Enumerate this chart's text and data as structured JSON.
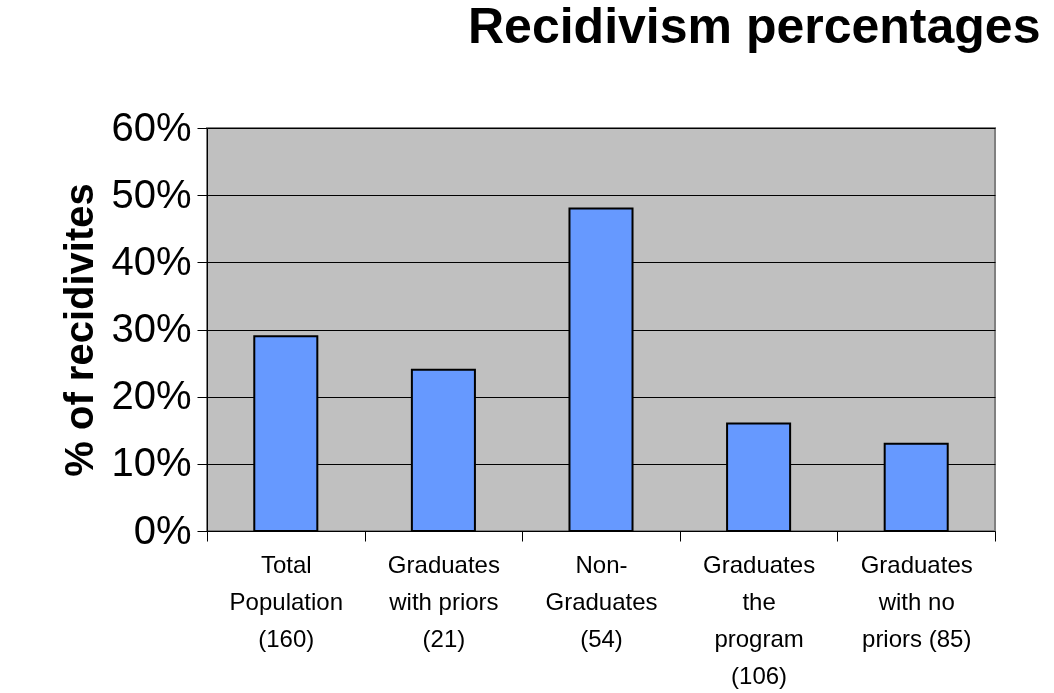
{
  "chart_data": {
    "type": "bar",
    "title": "Recidivism percentages",
    "ylabel": "% of recidivites",
    "categories": [
      "Total\nPopulation\n(160)",
      "Graduates\nwith priors\n(21)",
      "Non-\nGraduates\n(54)",
      "Graduates\nthe\nprogram\n(106)",
      "Graduates\nwith no\npriors (85)"
    ],
    "values": [
      29,
      24,
      48,
      16,
      13
    ],
    "color": "#6699ff",
    "ylim": [
      0,
      60
    ],
    "yticks": [
      {
        "value": 0,
        "label": "0%"
      },
      {
        "value": 10,
        "label": "10%"
      },
      {
        "value": 20,
        "label": "20%"
      },
      {
        "value": 30,
        "label": "30%"
      },
      {
        "value": 40,
        "label": "40%"
      },
      {
        "value": 50,
        "label": "50%"
      },
      {
        "value": 60,
        "label": "60%"
      }
    ],
    "grid": "y"
  }
}
